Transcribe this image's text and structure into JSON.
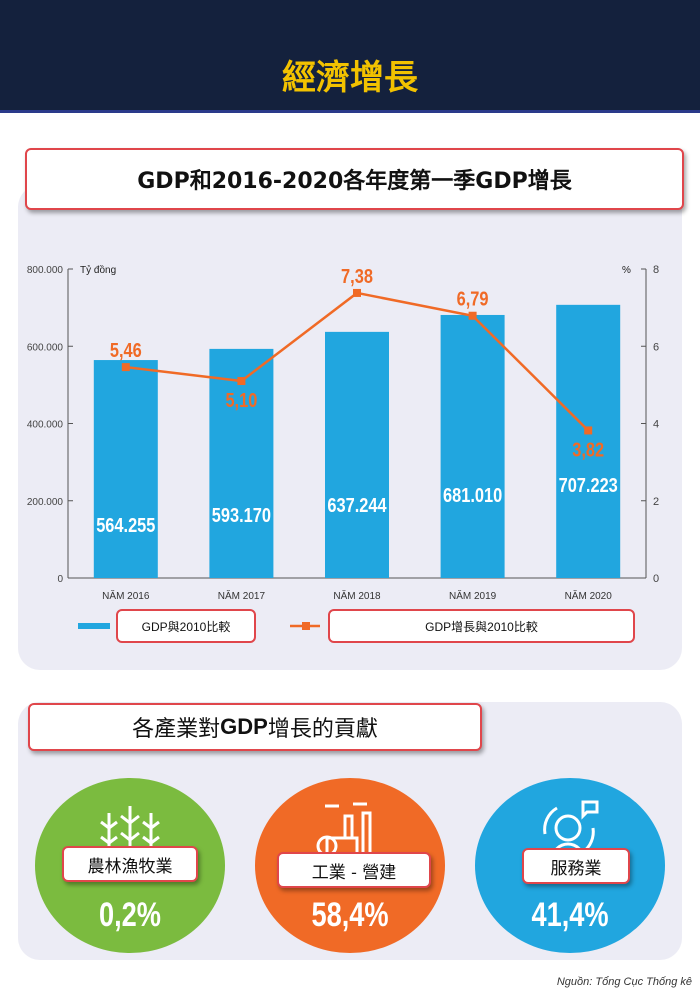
{
  "header": {
    "title": "經濟增長"
  },
  "chart_section": {
    "title": "GDP和2016-2020各年度第一季GDP增長"
  },
  "chart_data": {
    "type": "bar+line",
    "title": "GDP和2016-2020各年度第一季GDP增長",
    "categories": [
      "NĂM 2016",
      "NĂM 2017",
      "NĂM 2018",
      "NĂM 2019",
      "NĂM 2020"
    ],
    "left_axis": {
      "label": "Tỷ đồng",
      "range": [
        0,
        800000
      ],
      "ticks": [
        "0",
        "200.000",
        "400.000",
        "600.000",
        "800.000"
      ]
    },
    "right_axis": {
      "label": "%",
      "range": [
        0,
        8
      ],
      "ticks": [
        "0",
        "2",
        "4",
        "6",
        "8"
      ]
    },
    "series": [
      {
        "name": "GDP與2010比較",
        "type": "bar",
        "color": "#21a6df",
        "values": [
          564255,
          593170,
          637244,
          681010,
          707223
        ],
        "labels": [
          "564.255",
          "593.170",
          "637.244",
          "681.010",
          "707.223"
        ]
      },
      {
        "name": "GDP增長與2010比較",
        "type": "line",
        "color": "#f06a26",
        "values": [
          5.46,
          5.1,
          7.38,
          6.79,
          3.82
        ],
        "labels": [
          "5,46",
          "5,10",
          "7,38",
          "6,79",
          "3,82"
        ]
      }
    ],
    "legend": "bottom"
  },
  "sectors": {
    "title_cn": "各產業對",
    "title_gdp": "GDP",
    "title_rest": " 增長的貢獻",
    "items": [
      {
        "label": "農林漁牧業",
        "value": "0,2%",
        "color": "#7bbb3f",
        "icon": "wheat-icon"
      },
      {
        "label": "工業 - 營建",
        "value": "58,4%",
        "color": "#f06a26",
        "icon": "factory-icon"
      },
      {
        "label": "服務業",
        "value": "41,4%",
        "color": "#21a6df",
        "icon": "customer-service-icon"
      }
    ]
  },
  "source": "Nguồn: Tổng Cục Thống kê"
}
